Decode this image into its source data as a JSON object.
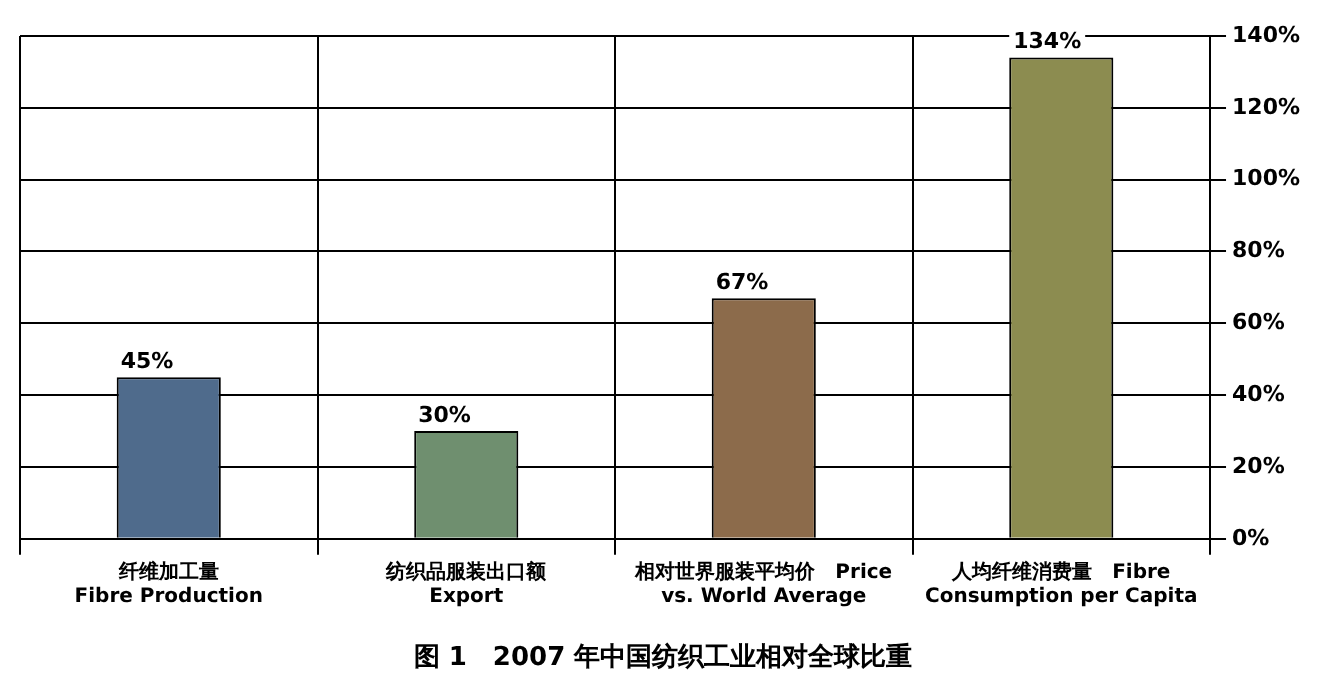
{
  "chart_data": {
    "type": "bar",
    "title": "图 1　2007 年中国纺织工业相对全球比重",
    "categories": [
      "纤维加工量\nFibre Production",
      "纺织品服装出口额\nExport",
      "相对世界服装平均价　Price\nvs. World Average",
      "人均纤维消费量　Fibre\nConsumption per Capita"
    ],
    "values": [
      45,
      30,
      67,
      134
    ],
    "colors": [
      "#4f6b8c",
      "#6f8f6f",
      "#8c6b4b",
      "#8c8c50"
    ],
    "value_labels": [
      "45%",
      "30%",
      "67%",
      "134%"
    ],
    "ylim": [
      0,
      140
    ],
    "yticks": [
      {
        "value": 0,
        "label": "0%"
      },
      {
        "value": 20,
        "label": "20%"
      },
      {
        "value": 40,
        "label": "40%"
      },
      {
        "value": 60,
        "label": "60%"
      },
      {
        "value": 80,
        "label": "80%"
      },
      {
        "value": 100,
        "label": "100%"
      },
      {
        "value": 120,
        "label": "120%"
      },
      {
        "value": 140,
        "label": "140%"
      }
    ],
    "grid": true
  }
}
